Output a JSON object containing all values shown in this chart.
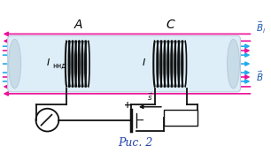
{
  "bg_color": "#ffffff",
  "cyan_color": "#22aaee",
  "magenta_color": "#ee1199",
  "blue_label": "#1855aa",
  "tube_fc": "#ddeef8",
  "tube_ec": "#bbccdd",
  "coil_color": "#111111",
  "wire_color": "#111111",
  "caption_color": "#2244aa",
  "figure_title": "Рис. 2",
  "label_A": "A",
  "label_C": "C"
}
